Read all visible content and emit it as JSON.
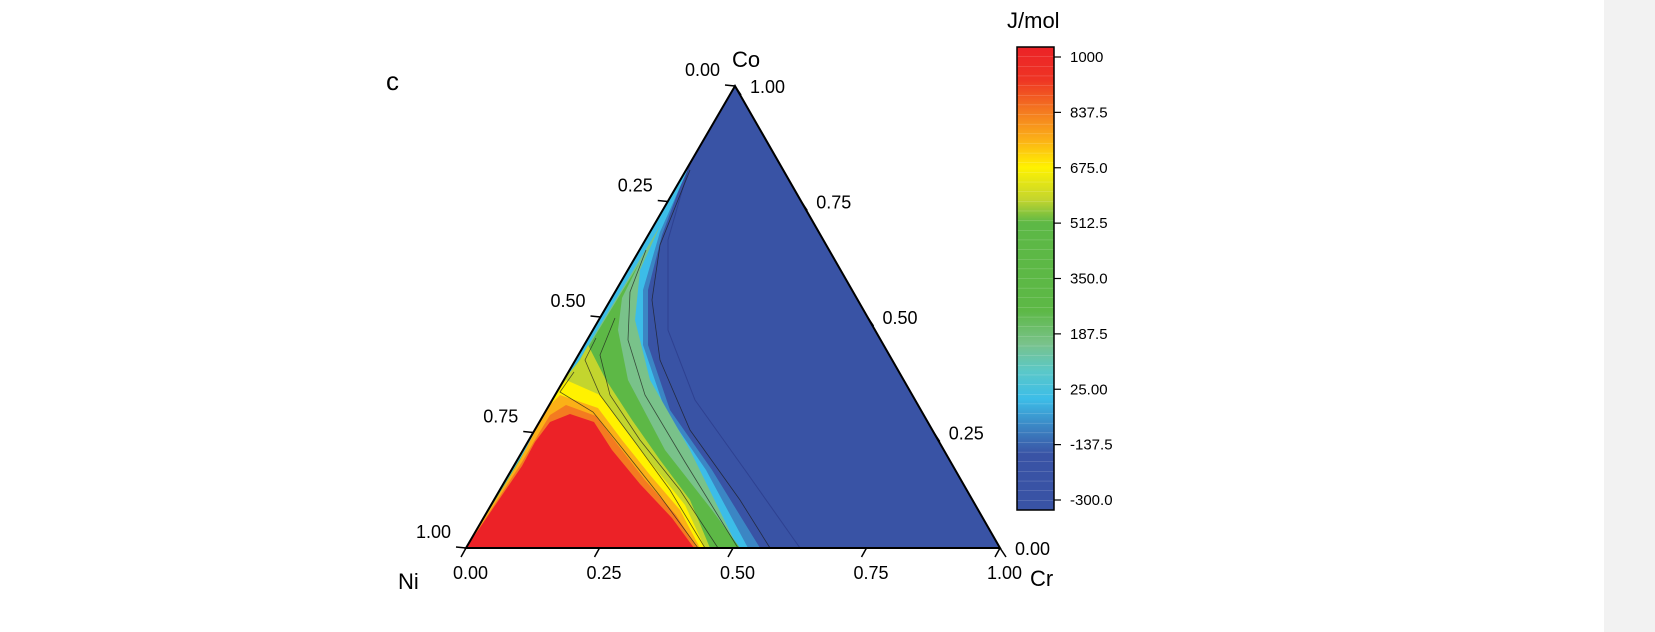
{
  "chart_data": {
    "type": "ternary-contour",
    "panel_label": "c",
    "units": "J/mol",
    "components": {
      "top": "Co",
      "left": "Ni",
      "right": "Cr"
    },
    "axes": {
      "bottom": {
        "component": "Cr",
        "ticks": [
          "0.00",
          "0.25",
          "0.50",
          "0.75",
          "1.00"
        ]
      },
      "left": {
        "component": "Ni",
        "ticks": [
          "0.00",
          "0.25",
          "0.50",
          "0.75",
          "1.00"
        ]
      },
      "right": {
        "component": "Co",
        "ticks": [
          "0.00",
          "0.25",
          "0.50",
          "0.75",
          "1.00"
        ]
      }
    },
    "colorbar": {
      "range": [
        -300.0,
        1000
      ],
      "tick_values": [
        1000,
        837.5,
        675.0,
        512.5,
        350.0,
        187.5,
        25.0,
        -137.5,
        -300.0
      ],
      "tick_labels": [
        "1000",
        "837.5",
        "675.0",
        "512.5",
        "350.0",
        "187.5",
        "25.00",
        "-137.5",
        "-300.0"
      ],
      "levels": 48
    },
    "regions": [
      {
        "name": "high",
        "approx_value": 1000,
        "color": "#ec2227",
        "location": "Ni-rich corner"
      },
      {
        "name": "orange-yellow band",
        "approx_value": 700,
        "color": "#fbb017"
      },
      {
        "name": "green band",
        "approx_value": 400,
        "color": "#5db846"
      },
      {
        "name": "cyan band",
        "approx_value": 50,
        "color": "#3cbde8"
      },
      {
        "name": "low",
        "approx_value": -300,
        "color": "#3953a5",
        "location": "Co- and Cr-rich region"
      }
    ]
  },
  "colors": {
    "red": "#ec2227",
    "orange": "#f47b20",
    "yellow": "#fff200",
    "green": "#5db846",
    "cyan": "#3cbde8",
    "blue": "#3953a5",
    "navy": "#2e3f8f"
  }
}
